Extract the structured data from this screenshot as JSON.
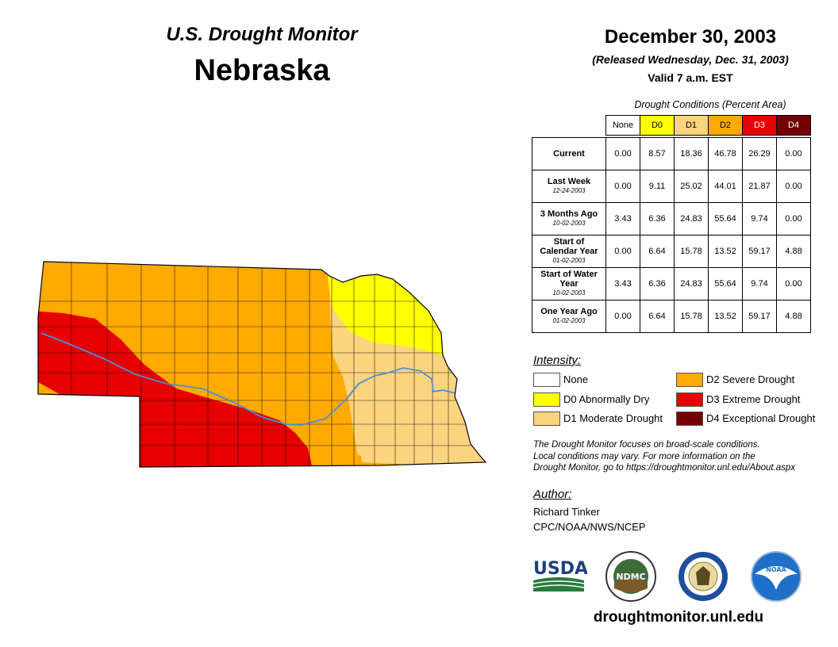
{
  "title": "U.S. Drought Monitor",
  "state": "Nebraska",
  "date": "December 30, 2003",
  "released": "(Released Wednesday, Dec. 31, 2003)",
  "valid": "Valid 7 a.m. EST",
  "table": {
    "caption": "Drought Conditions (Percent Area)",
    "columns": [
      "None",
      "D0",
      "D1",
      "D2",
      "D3",
      "D4"
    ],
    "column_colors": [
      "#ffffff",
      "#ffff00",
      "#fcd37f",
      "#ffaa00",
      "#e60000",
      "#730000"
    ],
    "rows": [
      {
        "label": "Current",
        "date": "",
        "values": [
          "0.00",
          "8.57",
          "18.36",
          "46.78",
          "26.29",
          "0.00"
        ]
      },
      {
        "label": "Last Week",
        "date": "12-24-2003",
        "values": [
          "0.00",
          "9.11",
          "25.02",
          "44.01",
          "21.87",
          "0.00"
        ]
      },
      {
        "label": "3 Months Ago",
        "date": "10-02-2003",
        "values": [
          "3.43",
          "6.36",
          "24.83",
          "55.64",
          "9.74",
          "0.00"
        ]
      },
      {
        "label": "Start of Calendar Year",
        "date": "01-02-2003",
        "values": [
          "0.00",
          "6.64",
          "15.78",
          "13.52",
          "59.17",
          "4.88"
        ]
      },
      {
        "label": "Start of Water Year",
        "date": "10-02-2003",
        "values": [
          "3.43",
          "6.36",
          "24.83",
          "55.64",
          "9.74",
          "0.00"
        ]
      },
      {
        "label": "One Year Ago",
        "date": "01-02-2003",
        "values": [
          "0.00",
          "6.64",
          "15.78",
          "13.52",
          "59.17",
          "4.88"
        ]
      }
    ]
  },
  "legend": {
    "heading": "Intensity:",
    "items": [
      {
        "label": "None",
        "color": "#ffffff"
      },
      {
        "label": "D0 Abnormally Dry",
        "color": "#ffff00"
      },
      {
        "label": "D1 Moderate Drought",
        "color": "#fcd37f"
      },
      {
        "label": "D2 Severe Drought",
        "color": "#ffaa00"
      },
      {
        "label": "D3 Extreme Drought",
        "color": "#e60000"
      },
      {
        "label": "D4 Exceptional Drought",
        "color": "#730000"
      }
    ]
  },
  "note": {
    "line1": "The Drought Monitor focuses on broad-scale conditions.",
    "line2": "Local conditions may vary. For more information on the",
    "line3": "Drought Monitor, go to https://droughtmonitor.unl.edu/About.aspx"
  },
  "author": {
    "heading": "Author:",
    "name": "Richard Tinker",
    "org": "CPC/NOAA/NWS/NCEP"
  },
  "logos": {
    "usda": "USDA",
    "ndmc": "NDMC",
    "noaa": "NOAA"
  },
  "website": "droughtmonitor.unl.edu"
}
